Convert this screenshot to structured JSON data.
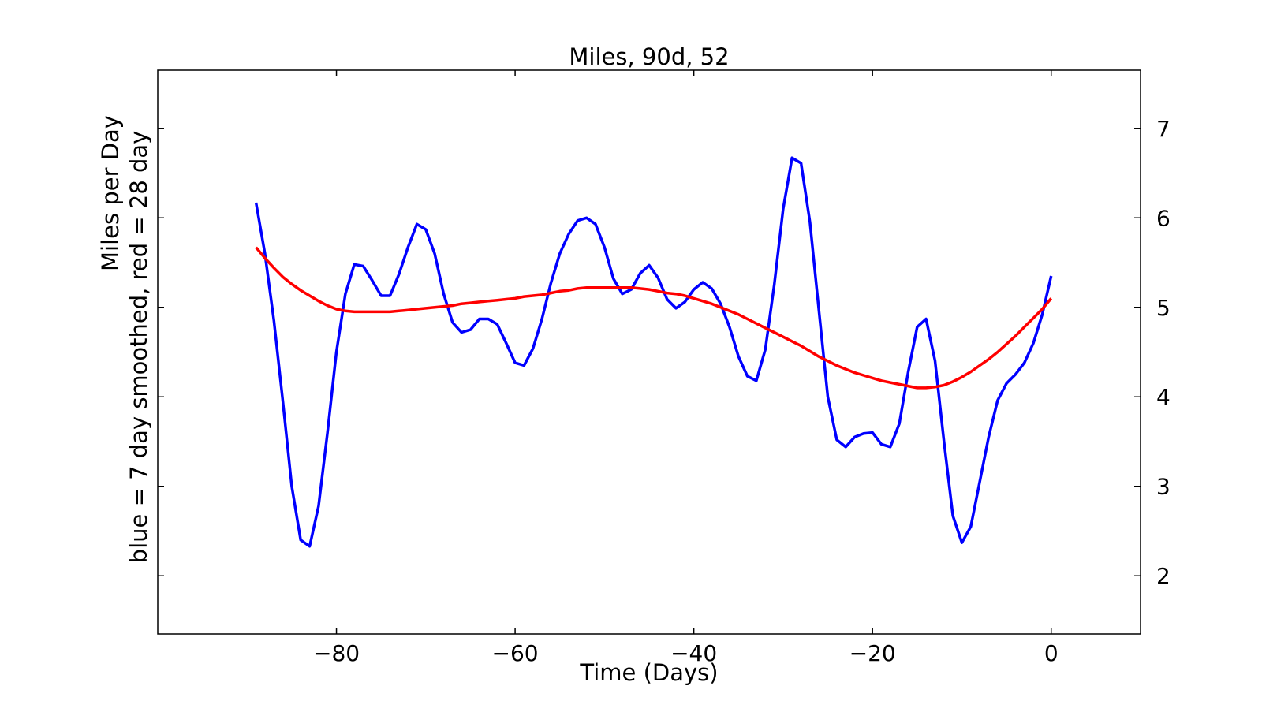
{
  "chart_data": {
    "type": "line",
    "title": "Miles, 90d, 52",
    "xlabel": "Time (Days)",
    "ylabel_line1": "Miles per Day",
    "ylabel_line2": "blue = 7 day smoothed, red = 28 day",
    "xlim": [
      -100,
      10
    ],
    "ylim": [
      1.35,
      7.65
    ],
    "x_ticks": [
      -80,
      -60,
      -40,
      -20,
      0
    ],
    "x_tick_labels": [
      "−80",
      "−60",
      "−40",
      "−20",
      "0"
    ],
    "y_ticks": [
      2,
      3,
      4,
      5,
      6,
      7
    ],
    "y_tick_labels": [
      "2",
      "3",
      "4",
      "5",
      "6",
      "7"
    ],
    "y_axis_side": "right",
    "grid": false,
    "x": [
      -89,
      -88,
      -87,
      -86,
      -85,
      -84,
      -83,
      -82,
      -81,
      -80,
      -79,
      -78,
      -77,
      -76,
      -75,
      -74,
      -73,
      -72,
      -71,
      -70,
      -69,
      -68,
      -67,
      -66,
      -65,
      -64,
      -63,
      -62,
      -61,
      -60,
      -59,
      -58,
      -57,
      -56,
      -55,
      -54,
      -53,
      -52,
      -51,
      -50,
      -49,
      -48,
      -47,
      -46,
      -45,
      -44,
      -43,
      -42,
      -41,
      -40,
      -39,
      -38,
      -37,
      -36,
      -35,
      -34,
      -33,
      -32,
      -31,
      -30,
      -29,
      -28,
      -27,
      -26,
      -25,
      -24,
      -23,
      -22,
      -21,
      -20,
      -19,
      -18,
      -17,
      -16,
      -15,
      -14,
      -13,
      -12,
      -11,
      -10,
      -9,
      -8,
      -7,
      -6,
      -5,
      -4,
      -3,
      -2,
      -1,
      0
    ],
    "series": [
      {
        "color": "#0000ff",
        "values": [
          6.17,
          5.6,
          4.85,
          3.95,
          3.0,
          2.4,
          2.33,
          2.78,
          3.6,
          4.5,
          5.15,
          5.48,
          5.46,
          5.3,
          5.13,
          5.13,
          5.37,
          5.67,
          5.93,
          5.87,
          5.6,
          5.15,
          4.83,
          4.72,
          4.75,
          4.87,
          4.87,
          4.81,
          4.6,
          4.38,
          4.35,
          4.54,
          4.87,
          5.27,
          5.6,
          5.82,
          5.97,
          6.0,
          5.93,
          5.67,
          5.32,
          5.15,
          5.2,
          5.38,
          5.47,
          5.33,
          5.09,
          4.99,
          5.06,
          5.2,
          5.28,
          5.21,
          5.04,
          4.78,
          4.45,
          4.23,
          4.18,
          4.53,
          5.25,
          6.1,
          6.67,
          6.61,
          5.95,
          4.97,
          4.0,
          3.52,
          3.44,
          3.55,
          3.59,
          3.6,
          3.47,
          3.44,
          3.7,
          4.28,
          4.78,
          4.87,
          4.4,
          3.5,
          2.67,
          2.37,
          2.55,
          3.05,
          3.55,
          3.96,
          4.15,
          4.25,
          4.38,
          4.6,
          4.92,
          5.35
        ]
      },
      {
        "color": "#ff0000",
        "values": [
          5.67,
          5.55,
          5.44,
          5.34,
          5.26,
          5.19,
          5.13,
          5.07,
          5.02,
          4.98,
          4.96,
          4.95,
          4.95,
          4.95,
          4.95,
          4.95,
          4.96,
          4.97,
          4.98,
          4.99,
          5.0,
          5.01,
          5.02,
          5.04,
          5.05,
          5.06,
          5.07,
          5.08,
          5.09,
          5.1,
          5.12,
          5.13,
          5.14,
          5.16,
          5.18,
          5.19,
          5.21,
          5.22,
          5.22,
          5.22,
          5.22,
          5.22,
          5.22,
          5.21,
          5.2,
          5.18,
          5.16,
          5.15,
          5.13,
          5.1,
          5.07,
          5.04,
          5.0,
          4.96,
          4.92,
          4.87,
          4.82,
          4.77,
          4.72,
          4.67,
          4.62,
          4.57,
          4.51,
          4.45,
          4.4,
          4.35,
          4.31,
          4.27,
          4.24,
          4.21,
          4.18,
          4.16,
          4.14,
          4.12,
          4.1,
          4.1,
          4.11,
          4.13,
          4.17,
          4.22,
          4.28,
          4.35,
          4.42,
          4.5,
          4.59,
          4.68,
          4.78,
          4.88,
          4.98,
          5.1
        ]
      }
    ]
  }
}
